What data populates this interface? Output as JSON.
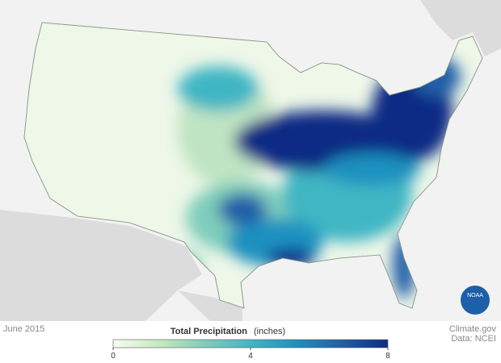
{
  "title": "June 2015",
  "legend": {
    "title": "Total Precipitation",
    "unit": "(inches)",
    "range": [
      0,
      8
    ],
    "ticks": [
      0,
      4,
      8
    ],
    "colors": [
      "#f7fcf0",
      "#c7e9c0",
      "#7fcdbb",
      "#41b6c4",
      "#1d91c0",
      "#225ea8",
      "#0c2c84"
    ]
  },
  "credits": {
    "site": "Climate.gov",
    "source": "Data: NCEI"
  },
  "logo": "NOAA"
}
